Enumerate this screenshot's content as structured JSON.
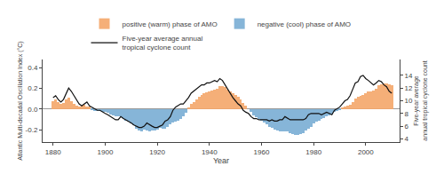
{
  "chart_data": {
    "type": "bar",
    "x": [
      1880,
      1881,
      1882,
      1883,
      1884,
      1885,
      1886,
      1887,
      1888,
      1889,
      1890,
      1891,
      1892,
      1893,
      1894,
      1895,
      1896,
      1897,
      1898,
      1899,
      1900,
      1901,
      1902,
      1903,
      1904,
      1905,
      1906,
      1907,
      1908,
      1909,
      1910,
      1911,
      1912,
      1913,
      1914,
      1915,
      1916,
      1917,
      1918,
      1919,
      1920,
      1921,
      1922,
      1923,
      1924,
      1925,
      1926,
      1927,
      1928,
      1929,
      1930,
      1931,
      1932,
      1933,
      1934,
      1935,
      1936,
      1937,
      1938,
      1939,
      1940,
      1941,
      1942,
      1943,
      1944,
      1945,
      1946,
      1947,
      1948,
      1949,
      1950,
      1951,
      1952,
      1953,
      1954,
      1955,
      1956,
      1957,
      1958,
      1959,
      1960,
      1961,
      1962,
      1963,
      1964,
      1965,
      1966,
      1967,
      1968,
      1969,
      1970,
      1971,
      1972,
      1973,
      1974,
      1975,
      1976,
      1977,
      1978,
      1979,
      1980,
      1981,
      1982,
      1983,
      1984,
      1985,
      1986,
      1987,
      1988,
      1989,
      1990,
      1991,
      1992,
      1993,
      1994,
      1995,
      1996,
      1997,
      1998,
      1999,
      2000,
      2001,
      2002,
      2003,
      2004,
      2005,
      2006,
      2007,
      2008,
      2009,
      2010
    ],
    "xlabel": "Year",
    "ylabel": "Atlantic Multi-decadal Oscillation Index (°C)",
    "y2label": "Five-year average\nannual tropical cyclone count",
    "series": [
      {
        "name": "positive (warm) phase of AMO",
        "color": "#F5A76A",
        "values": [
          0.08,
          0.09,
          0.07,
          0.05,
          0.06,
          0.09,
          0.11,
          0.08,
          0.05,
          0.03,
          0.02,
          0.03,
          0.04,
          0.02,
          0.02,
          null,
          null,
          null,
          null,
          null,
          null,
          null,
          null,
          null,
          null,
          null,
          null,
          null,
          null,
          null,
          null,
          null,
          null,
          null,
          null,
          null,
          null,
          null,
          null,
          null,
          null,
          null,
          null,
          null,
          null,
          null,
          null,
          null,
          null,
          null,
          null,
          null,
          0.01,
          0.05,
          0.07,
          0.09,
          0.12,
          0.14,
          0.15,
          0.16,
          0.17,
          0.18,
          0.19,
          0.2,
          0.22,
          0.22,
          0.21,
          0.19,
          0.17,
          0.15,
          0.14,
          0.12,
          0.09,
          0.06,
          0.03,
          0.0,
          null,
          null,
          null,
          null,
          null,
          null,
          null,
          null,
          null,
          null,
          null,
          null,
          null,
          null,
          null,
          null,
          null,
          null,
          null,
          null,
          null,
          null,
          null,
          null,
          null,
          null,
          null,
          null,
          null,
          null,
          null,
          null,
          null,
          null,
          null,
          0.01,
          0.02,
          0.03,
          0.04,
          0.07,
          0.1,
          0.12,
          0.13,
          0.14,
          0.15,
          0.17,
          0.17,
          0.18,
          0.2,
          0.23,
          0.24,
          0.25,
          0.25,
          0.24,
          0.23
        ]
      },
      {
        "name": "negative (cool) phase of AMO",
        "color": "#7AADD4",
        "values": [
          null,
          null,
          null,
          null,
          null,
          null,
          null,
          null,
          null,
          null,
          null,
          null,
          null,
          null,
          null,
          -0.01,
          -0.02,
          -0.02,
          -0.02,
          -0.03,
          -0.03,
          -0.04,
          -0.05,
          -0.06,
          -0.07,
          -0.07,
          -0.08,
          -0.1,
          -0.11,
          -0.12,
          -0.14,
          -0.16,
          -0.19,
          -0.21,
          -0.22,
          -0.2,
          -0.21,
          -0.22,
          -0.21,
          -0.21,
          -0.2,
          -0.18,
          -0.19,
          -0.19,
          -0.17,
          -0.15,
          -0.13,
          -0.12,
          -0.11,
          -0.1,
          -0.07,
          -0.04,
          null,
          null,
          null,
          null,
          null,
          null,
          null,
          null,
          null,
          null,
          null,
          null,
          null,
          null,
          null,
          null,
          null,
          null,
          null,
          null,
          null,
          null,
          null,
          null,
          -0.03,
          -0.06,
          -0.08,
          -0.1,
          -0.11,
          -0.13,
          -0.15,
          -0.17,
          -0.18,
          -0.2,
          -0.21,
          -0.22,
          -0.22,
          -0.22,
          -0.22,
          -0.23,
          -0.24,
          -0.25,
          -0.25,
          -0.24,
          -0.23,
          -0.21,
          -0.19,
          -0.17,
          -0.14,
          -0.12,
          -0.11,
          -0.1,
          -0.09,
          -0.07,
          -0.06,
          -0.05,
          -0.03,
          -0.02,
          -0.01,
          null,
          null,
          null,
          null,
          null,
          null,
          null,
          null,
          null,
          null,
          null,
          null,
          null,
          null,
          null,
          null,
          null,
          null,
          null,
          null
        ]
      },
      {
        "name": "Five-year average annual\ntropical cyclone count",
        "type": "line",
        "axis": "y2",
        "color": "#111111",
        "values": [
          10.5,
          10.8,
          10.2,
          9.8,
          10.2,
          11.0,
          12.0,
          11.5,
          10.8,
          10.2,
          9.5,
          9.2,
          9.5,
          9.8,
          9.2,
          9.0,
          8.8,
          8.5,
          8.5,
          8.2,
          8.0,
          7.8,
          7.5,
          7.2,
          7.0,
          7.0,
          7.5,
          7.2,
          7.0,
          6.8,
          6.5,
          6.2,
          6.0,
          5.8,
          5.8,
          6.0,
          6.5,
          6.2,
          6.0,
          5.8,
          5.8,
          6.0,
          6.2,
          6.8,
          7.0,
          7.5,
          8.5,
          9.0,
          9.2,
          9.5,
          9.5,
          10.0,
          10.5,
          11.2,
          11.5,
          11.8,
          12.2,
          12.5,
          12.5,
          12.8,
          12.8,
          13.0,
          13.2,
          13.0,
          13.5,
          13.2,
          12.5,
          11.8,
          11.2,
          10.5,
          10.0,
          9.5,
          9.2,
          8.5,
          8.2,
          8.0,
          7.5,
          7.2,
          7.2,
          7.0,
          7.0,
          7.0,
          7.0,
          6.8,
          7.0,
          6.8,
          6.8,
          7.0,
          7.0,
          7.5,
          7.2,
          7.0,
          7.0,
          7.0,
          7.0,
          7.0,
          7.0,
          7.2,
          7.8,
          8.0,
          8.0,
          8.0,
          8.0,
          7.8,
          8.0,
          8.2,
          8.0,
          7.8,
          8.5,
          8.8,
          9.0,
          9.5,
          10.0,
          10.2,
          10.8,
          11.8,
          12.8,
          13.0,
          13.8,
          14.0,
          13.5,
          13.2,
          12.8,
          12.5,
          12.8,
          13.2,
          13.0,
          12.5,
          12.2,
          11.5,
          11.2
        ]
      }
    ],
    "xlim": [
      1876,
      2013
    ],
    "xticks": [
      1880,
      1900,
      1920,
      1940,
      1960,
      1980,
      2000
    ],
    "ylim": [
      -0.32,
      0.48
    ],
    "yticks": [
      -0.2,
      {
        "value": 0.0,
        "label": "0.0"
      },
      0.2,
      0.4
    ],
    "y2lim": [
      3.5,
      16.5
    ],
    "y2ticks": [
      4,
      6,
      8,
      10,
      12,
      14
    ],
    "grid": false,
    "legend": "top"
  }
}
